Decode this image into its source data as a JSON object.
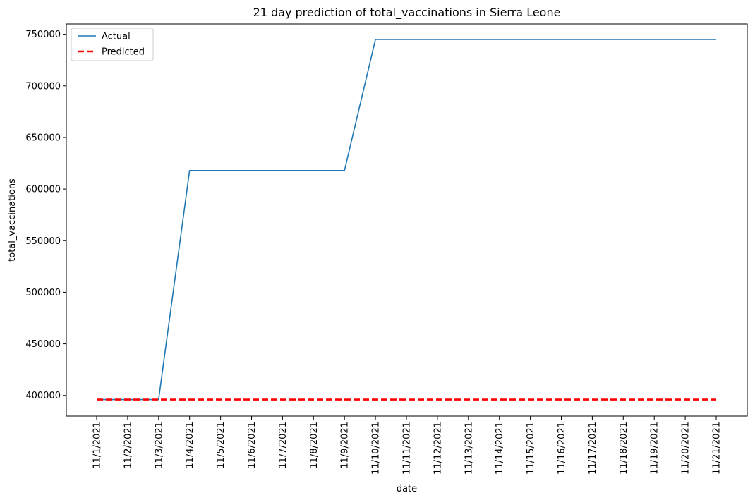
{
  "chart_data": {
    "type": "line",
    "title": "21 day prediction of total_vaccinations in Sierra Leone",
    "xlabel": "date",
    "ylabel": "total_vaccinations",
    "x": [
      "11/1/2021",
      "11/2/2021",
      "11/3/2021",
      "11/4/2021",
      "11/5/2021",
      "11/6/2021",
      "11/7/2021",
      "11/8/2021",
      "11/9/2021",
      "11/10/2021",
      "11/11/2021",
      "11/12/2021",
      "11/13/2021",
      "11/14/2021",
      "11/15/2021",
      "11/16/2021",
      "11/17/2021",
      "11/18/2021",
      "11/19/2021",
      "11/20/2021",
      "11/21/2021"
    ],
    "ylim": [
      380000,
      760000
    ],
    "yticks": [
      400000,
      450000,
      500000,
      550000,
      600000,
      650000,
      700000,
      750000
    ],
    "grid": false,
    "legend_position": "top-left",
    "series": [
      {
        "name": "Actual",
        "color": "#1f77b4",
        "style": "solid",
        "values": [
          396000,
          396000,
          396000,
          618000,
          618000,
          618000,
          618000,
          618000,
          618000,
          745000,
          745000,
          745000,
          745000,
          745000,
          745000,
          745000,
          745000,
          745000,
          745000,
          745000,
          745000
        ]
      },
      {
        "name": "Predicted",
        "color": "#ff0000",
        "style": "dashed",
        "values": [
          396000,
          396000,
          396000,
          396000,
          396000,
          396000,
          396000,
          396000,
          396000,
          396000,
          396000,
          396000,
          396000,
          396000,
          396000,
          396000,
          396000,
          396000,
          396000,
          396000,
          396000
        ]
      }
    ]
  }
}
